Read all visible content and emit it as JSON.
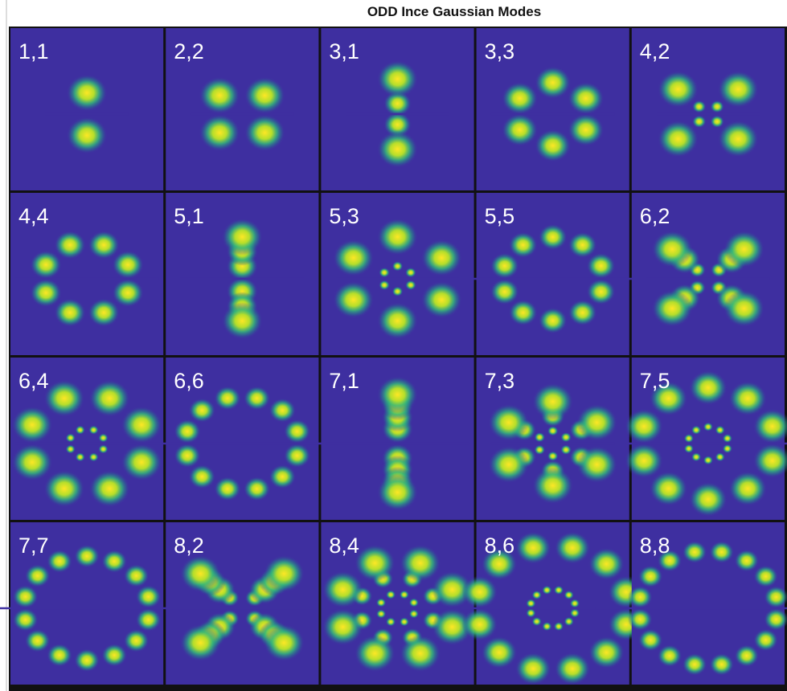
{
  "title": "ODD Ince Gaussian Modes",
  "panels": [
    {
      "label": "1,1"
    },
    {
      "label": "2,2"
    },
    {
      "label": "3,1"
    },
    {
      "label": "3,3"
    },
    {
      "label": "4,2"
    },
    {
      "label": "4,4"
    },
    {
      "label": "5,1"
    },
    {
      "label": "5,3"
    },
    {
      "label": "5,5"
    },
    {
      "label": "6,2"
    },
    {
      "label": "6,4"
    },
    {
      "label": "6,6"
    },
    {
      "label": "7,1"
    },
    {
      "label": "7,3"
    },
    {
      "label": "7,5"
    },
    {
      "label": "7,7"
    },
    {
      "label": "8,2"
    },
    {
      "label": "8,4"
    },
    {
      "label": "8,6"
    },
    {
      "label": "8,8"
    }
  ]
}
